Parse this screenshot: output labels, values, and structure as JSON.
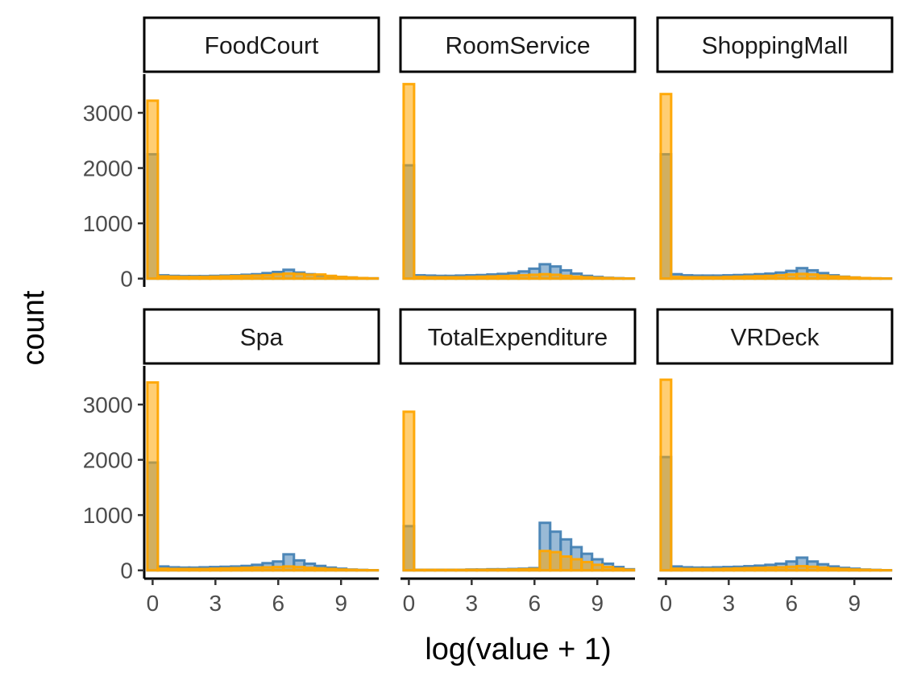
{
  "chart_data": {
    "type": "histogram",
    "facet_layout": "2 rows x 3 columns, shared axes",
    "xlabel": "log(value + 1)",
    "ylabel": "count",
    "xlim": [
      -0.4,
      10.8
    ],
    "ylim": [
      -150,
      3700
    ],
    "x_ticks": [
      0,
      3,
      6,
      9
    ],
    "y_ticks": [
      0,
      1000,
      2000,
      3000
    ],
    "bin_width": 0.5,
    "bin_centers": [
      0,
      0.5,
      1,
      1.5,
      2,
      2.5,
      3,
      3.5,
      4,
      4.5,
      5,
      5.5,
      6,
      6.5,
      7,
      7.5,
      8,
      8.5,
      9,
      9.5,
      10,
      10.5
    ],
    "series_colors": {
      "blue": "#4682B4",
      "orange": "#FFA500"
    },
    "panels": [
      {
        "label": "FoodCourt",
        "blue": [
          2250,
          60,
          50,
          45,
          45,
          45,
          50,
          55,
          60,
          70,
          80,
          100,
          120,
          160,
          110,
          80,
          55,
          40,
          30,
          20,
          10,
          5
        ],
        "orange": [
          3220,
          40,
          35,
          30,
          30,
          30,
          35,
          40,
          45,
          50,
          55,
          60,
          80,
          90,
          85,
          70,
          75,
          50,
          30,
          20,
          10,
          5
        ]
      },
      {
        "label": "RoomService",
        "blue": [
          2050,
          60,
          55,
          50,
          50,
          55,
          60,
          65,
          75,
          85,
          100,
          130,
          180,
          260,
          220,
          150,
          90,
          50,
          30,
          15,
          8,
          3
        ],
        "orange": [
          3520,
          30,
          25,
          25,
          25,
          25,
          30,
          35,
          40,
          45,
          50,
          60,
          70,
          80,
          70,
          50,
          35,
          25,
          15,
          10,
          5,
          2
        ]
      },
      {
        "label": "ShoppingMall",
        "blue": [
          2250,
          80,
          60,
          55,
          55,
          55,
          60,
          65,
          70,
          80,
          90,
          110,
          140,
          190,
          150,
          100,
          60,
          35,
          20,
          10,
          5,
          2
        ],
        "orange": [
          3340,
          30,
          25,
          25,
          25,
          25,
          30,
          35,
          40,
          45,
          50,
          60,
          75,
          85,
          75,
          55,
          40,
          30,
          20,
          10,
          5,
          2
        ]
      },
      {
        "label": "Spa",
        "blue": [
          1950,
          70,
          55,
          50,
          50,
          55,
          60,
          65,
          70,
          80,
          100,
          130,
          160,
          290,
          180,
          120,
          80,
          50,
          30,
          15,
          8,
          3
        ],
        "orange": [
          3400,
          30,
          25,
          25,
          25,
          25,
          30,
          35,
          40,
          45,
          50,
          55,
          60,
          70,
          60,
          45,
          35,
          25,
          15,
          10,
          5,
          2
        ]
      },
      {
        "label": "TotalExpenditure",
        "blue": [
          800,
          10,
          10,
          10,
          10,
          10,
          15,
          15,
          20,
          20,
          25,
          30,
          40,
          860,
          700,
          560,
          420,
          300,
          200,
          120,
          60,
          20
        ],
        "orange": [
          2870,
          8,
          8,
          8,
          8,
          8,
          10,
          10,
          12,
          12,
          15,
          20,
          25,
          350,
          330,
          250,
          200,
          150,
          100,
          60,
          30,
          10
        ]
      },
      {
        "label": "VRDeck",
        "blue": [
          2050,
          70,
          55,
          50,
          50,
          55,
          60,
          65,
          75,
          85,
          100,
          120,
          160,
          230,
          160,
          110,
          70,
          45,
          30,
          15,
          8,
          3
        ],
        "orange": [
          3450,
          30,
          25,
          25,
          25,
          25,
          30,
          35,
          40,
          45,
          50,
          55,
          65,
          75,
          65,
          50,
          35,
          25,
          15,
          10,
          5,
          2
        ]
      }
    ]
  }
}
